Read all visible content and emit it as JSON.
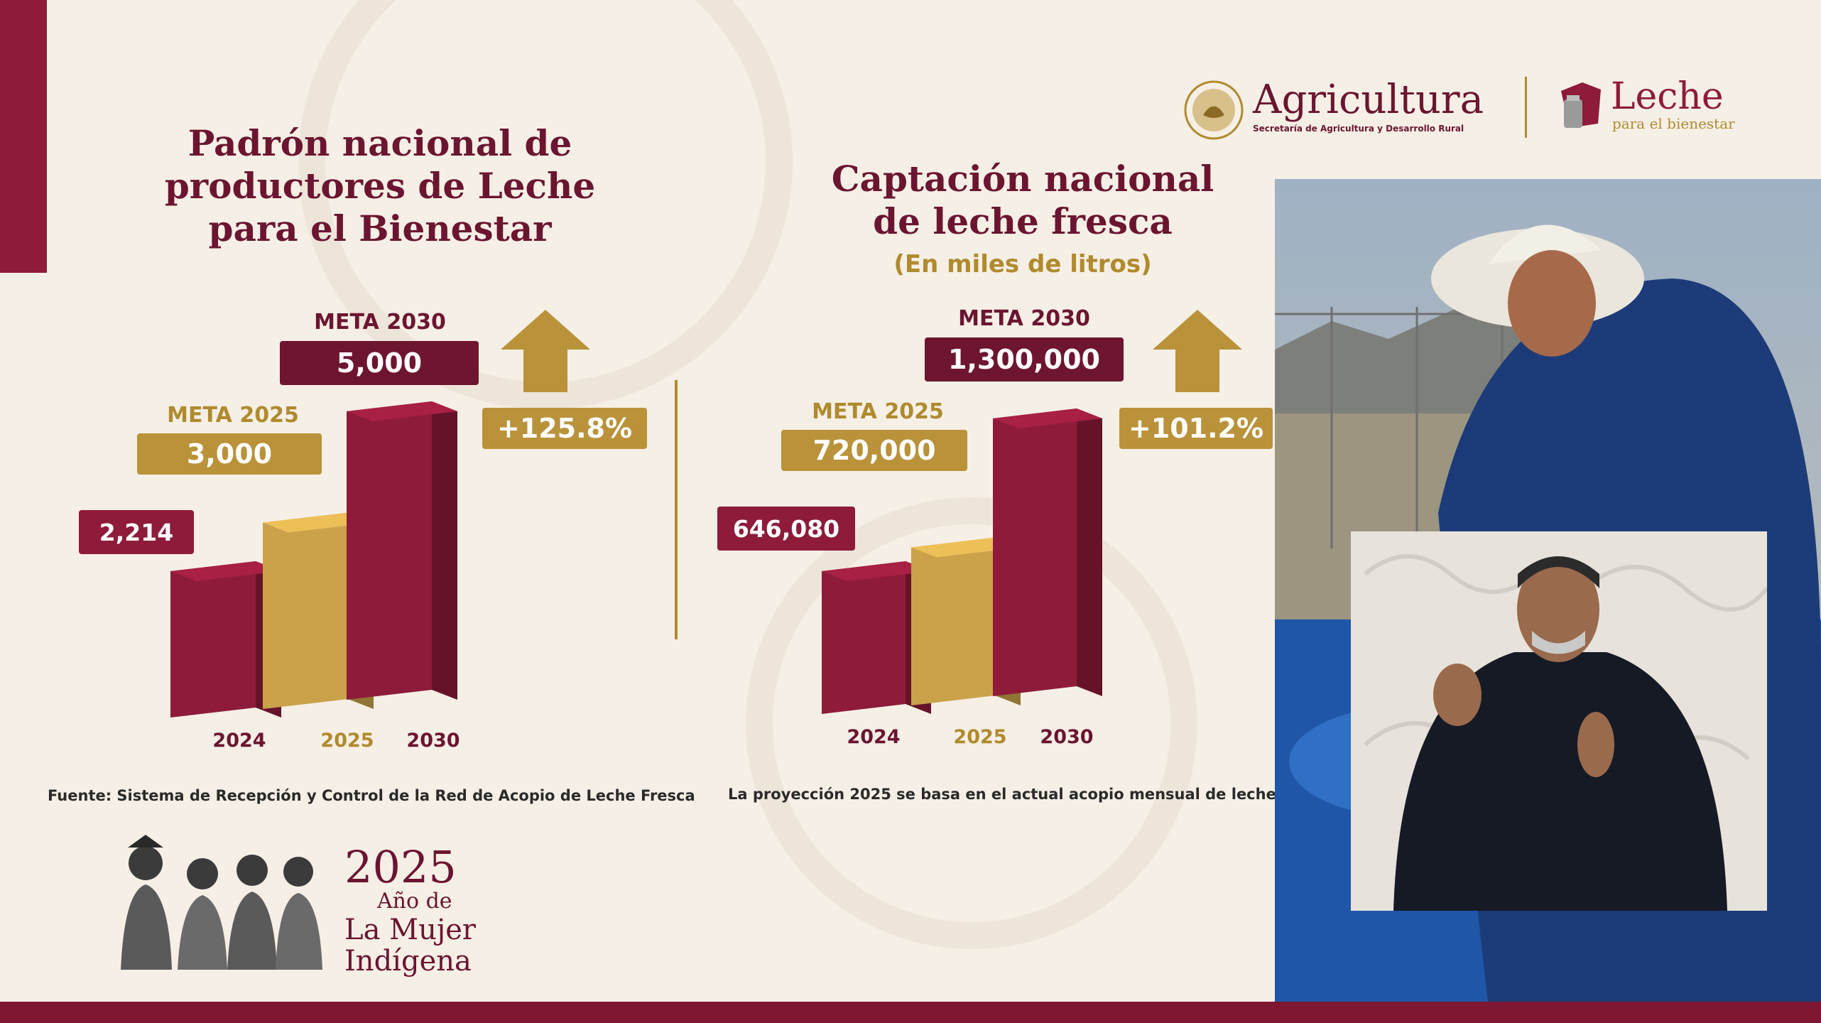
{
  "colors": {
    "maroon": "#8e1b3a",
    "maroon_dark": "#6e1530",
    "gold": "#b9923a",
    "cream": "#f6efe6"
  },
  "logos": {
    "agricultura": "Agricultura",
    "agricultura_subtitle": "Secretaría de Agricultura y Desarrollo Rural",
    "leche": "Leche",
    "leche_subtitle": "para el bienestar"
  },
  "chart_data": [
    {
      "type": "bar",
      "title": "Padrón nacional de productores de Leche para el Bienestar",
      "categories": [
        "2024",
        "2025",
        "2030"
      ],
      "values": [
        2214,
        3000,
        5000
      ],
      "value_labels": [
        "2,214",
        "3,000",
        "5,000"
      ],
      "meta_2025_label": "META 2025",
      "meta_2030_label": "META 2030",
      "increase_label": "+125.8%",
      "bar_colors": [
        "#8e1b3a",
        "#c9a24a",
        "#8e1b3a"
      ],
      "footnote": "Fuente: Sistema de Recepción y Control de la Red de Acopio de Leche Fresca"
    },
    {
      "type": "bar",
      "title": "Captación nacional de leche fresca",
      "subtitle": "(En miles de litros)",
      "categories": [
        "2024",
        "2025",
        "2030"
      ],
      "values": [
        646080,
        720000,
        1300000
      ],
      "value_labels": [
        "646,080",
        "720,000",
        "1,300,000"
      ],
      "meta_2025_label": "META 2025",
      "meta_2030_label": "META 2030",
      "increase_label": "+101.2%",
      "bar_colors": [
        "#8e1b3a",
        "#c9a24a",
        "#8e1b3a"
      ],
      "footnote": "La proyección 2025 se basa en el actual acopio mensual de leche"
    }
  ],
  "anio": {
    "year": "2025",
    "line1": "Año de",
    "line2": "La Mujer",
    "line3": "Indígena"
  }
}
